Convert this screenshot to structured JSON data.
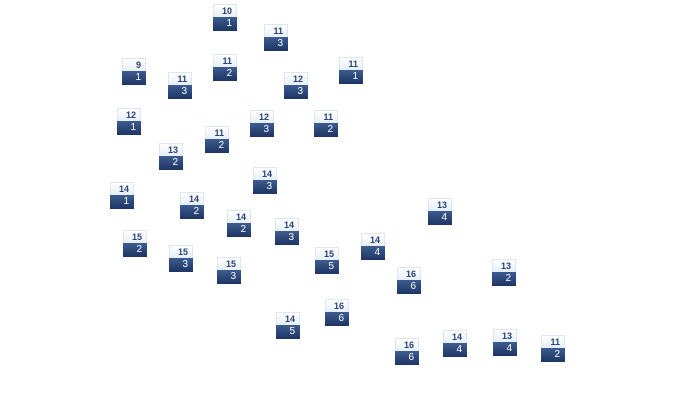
{
  "colors": {
    "header_text": "#2a4478",
    "body_top": "#3d5c90",
    "body_bottom": "#1d3563"
  },
  "tiles": [
    {
      "top": "10",
      "bottom": "1"
    },
    {
      "top": "11",
      "bottom": "3"
    },
    {
      "top": "9",
      "bottom": "1"
    },
    {
      "top": "11",
      "bottom": "2"
    },
    {
      "top": "11",
      "bottom": "3"
    },
    {
      "top": "12",
      "bottom": "3"
    },
    {
      "top": "11",
      "bottom": "1"
    },
    {
      "top": "12",
      "bottom": "1"
    },
    {
      "top": "12",
      "bottom": "3"
    },
    {
      "top": "11",
      "bottom": "2"
    },
    {
      "top": "11",
      "bottom": "2"
    },
    {
      "top": "13",
      "bottom": "2"
    },
    {
      "top": "14",
      "bottom": "3"
    },
    {
      "top": "14",
      "bottom": "1"
    },
    {
      "top": "14",
      "bottom": "2"
    },
    {
      "top": "13",
      "bottom": "4"
    },
    {
      "top": "14",
      "bottom": "2"
    },
    {
      "top": "14",
      "bottom": "3"
    },
    {
      "top": "15",
      "bottom": "2"
    },
    {
      "top": "15",
      "bottom": "3"
    },
    {
      "top": "15",
      "bottom": "3"
    },
    {
      "top": "15",
      "bottom": "5"
    },
    {
      "top": "14",
      "bottom": "4"
    },
    {
      "top": "16",
      "bottom": "6"
    },
    {
      "top": "13",
      "bottom": "2"
    },
    {
      "top": "14",
      "bottom": "5"
    },
    {
      "top": "16",
      "bottom": "6"
    },
    {
      "top": "16",
      "bottom": "6"
    },
    {
      "top": "14",
      "bottom": "4"
    },
    {
      "top": "13",
      "bottom": "4"
    },
    {
      "top": "11",
      "bottom": "2"
    }
  ]
}
